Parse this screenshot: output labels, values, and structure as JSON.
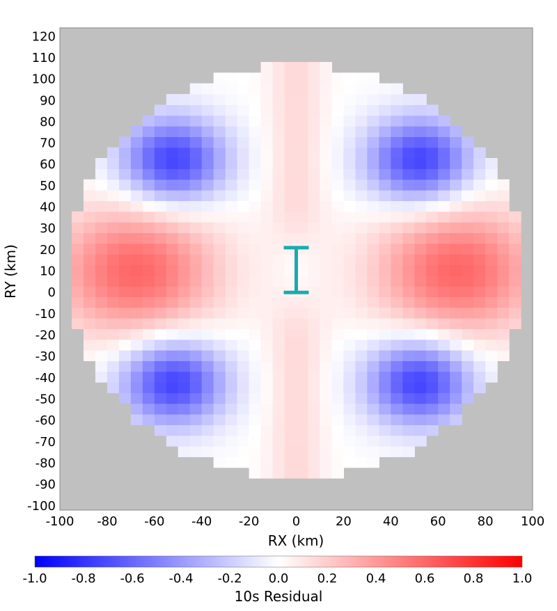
{
  "chart_data": {
    "type": "heatmap",
    "xlabel": "RX (km)",
    "ylabel": "RY (km)",
    "xlim": [
      -100,
      100
    ],
    "ylim": [
      -102,
      124
    ],
    "x_ticks": [
      -100,
      -80,
      -60,
      -40,
      -20,
      0,
      20,
      40,
      60,
      80,
      100
    ],
    "y_ticks": [
      120,
      110,
      100,
      90,
      80,
      70,
      60,
      50,
      40,
      30,
      20,
      10,
      0,
      -10,
      -20,
      -30,
      -40,
      -50,
      -60,
      -70,
      -80,
      -90,
      -100
    ],
    "grid": false,
    "background_color": "#c0c0c0",
    "domain": {
      "shape": "disc",
      "center": [
        0,
        10
      ],
      "radius_km": 97,
      "cell_km": 5
    },
    "field_description": {
      "symmetry": "four-lobed about (0, 10)",
      "positive_lobes_peak": [
        [
          -68,
          10,
          0.6
        ],
        [
          68,
          10,
          0.6
        ]
      ],
      "negative_lobes_peak": [
        [
          -52,
          62,
          -0.75
        ],
        [
          52,
          62,
          -0.75
        ],
        [
          -52,
          -42,
          -0.75
        ],
        [
          52,
          -42,
          -0.75
        ]
      ],
      "north_south_sector_value": 0.15
    },
    "marker": {
      "type": "error-bar",
      "x": 0,
      "y_low": 0,
      "y_high": 21,
      "color": "#1aabab"
    },
    "colorbar": {
      "label": "10s Residual",
      "min": -1.0,
      "max": 1.0,
      "ticks": [
        "-1.0",
        "-0.8",
        "-0.6",
        "-0.4",
        "-0.2",
        "0.0",
        "0.2",
        "0.4",
        "0.6",
        "0.8",
        "1.0"
      ],
      "low_color": "#0000ff",
      "mid_color": "#ffffff",
      "high_color": "#ff0000"
    }
  }
}
